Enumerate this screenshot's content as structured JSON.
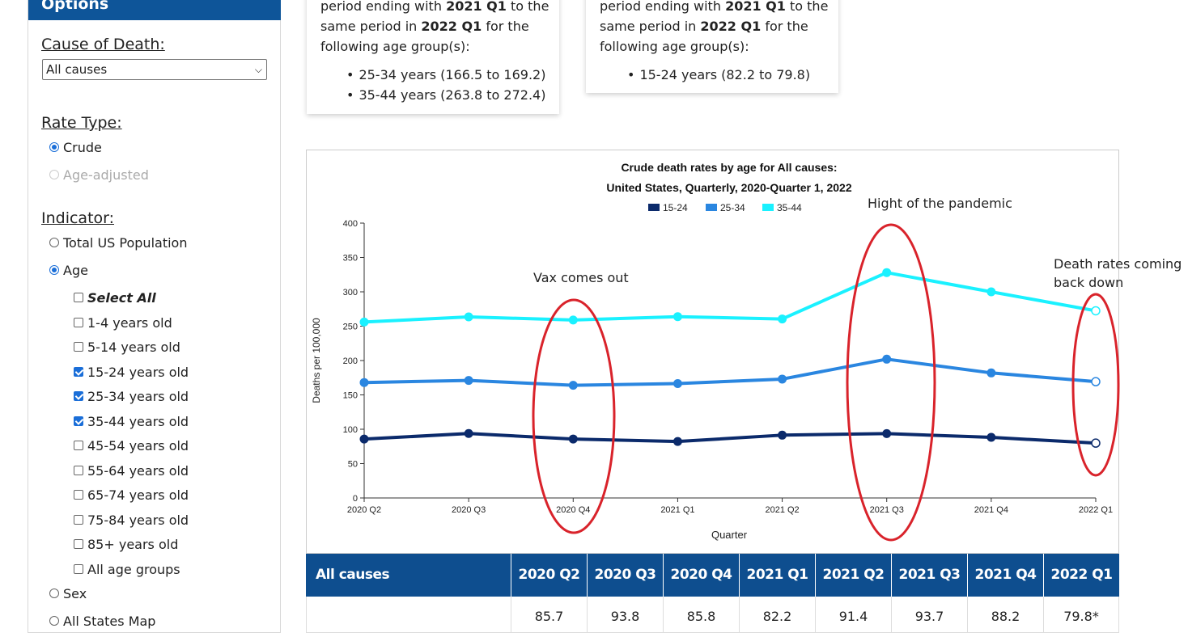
{
  "sidebar": {
    "header": "Options",
    "cause_title": "Cause of Death:",
    "cause_value": "All causes",
    "rate_title": "Rate Type:",
    "rate_options": [
      "Crude",
      "Age-adjusted"
    ],
    "indicator_title": "Indicator:",
    "indicator_options": [
      "Total US Population",
      "Age"
    ],
    "age_options": [
      "Select All",
      "1-4 years old",
      "5-14 years old",
      "15-24 years old",
      "25-34 years old",
      "35-44 years old",
      "45-54 years old",
      "55-64 years old",
      "65-74 years old",
      "75-84 years old",
      "85+ years old",
      "All age groups"
    ],
    "more_options": [
      "Sex",
      "All States Map"
    ]
  },
  "cards": [
    {
      "line1": "period ending with",
      "line1_bold": "2021 Q1",
      "line1_end": "to the",
      "line2": "same period in",
      "line2_bold": "2022 Q1",
      "line2_end": "for the",
      "line3": "following age group(s):",
      "items": [
        "25-34 years (166.5 to 169.2)",
        "35-44 years (263.8 to 272.4)"
      ]
    },
    {
      "line1": "period ending with",
      "line1_bold": "2021 Q1",
      "line1_end": "to the",
      "line2": "same period in",
      "line2_bold": "2022 Q1",
      "line2_end": "for the",
      "line3": "following age group(s):",
      "items": [
        "15-24 years (82.2 to 79.8)"
      ]
    }
  ],
  "annotations": {
    "vax": "Vax comes out",
    "peak": "Hight of the pandemic",
    "down1": "Death rates coming",
    "down2": "back down"
  },
  "colors": {
    "s1": "#0b2a6b",
    "s2": "#2a86e0",
    "s3": "#1af1ff",
    "ellipse": "#d9232b",
    "header": "#0e4e8f"
  },
  "chart_data": {
    "type": "line",
    "title": "Crude death rates by age for All causes:",
    "subtitle": "United States, Quarterly, 2020-Quarter 1, 2022",
    "xlabel": "Quarter",
    "ylabel": "Deaths per 100,000",
    "ylim": [
      0,
      400
    ],
    "yticks": [
      0,
      50,
      100,
      150,
      200,
      250,
      300,
      350,
      400
    ],
    "categories": [
      "2020 Q2",
      "2020 Q3",
      "2020 Q4",
      "2021 Q1",
      "2021 Q2",
      "2021 Q3",
      "2021 Q4",
      "2022 Q1"
    ],
    "series": [
      {
        "name": "15-24",
        "values": [
          85.7,
          93.8,
          85.8,
          82.2,
          91.4,
          93.7,
          88.2,
          79.8
        ]
      },
      {
        "name": "25-34",
        "values": [
          168,
          171,
          164,
          166.5,
          173,
          202,
          182,
          169.2
        ]
      },
      {
        "name": "35-44",
        "values": [
          256,
          263.5,
          259,
          263.8,
          260.5,
          328,
          300,
          272.4
        ]
      }
    ]
  },
  "table": {
    "header_first": "All causes",
    "columns": [
      "2020 Q2",
      "2020 Q3",
      "2020 Q4",
      "2021 Q1",
      "2021 Q2",
      "2021 Q3",
      "2021 Q4",
      "2022 Q1"
    ],
    "row1": [
      "85.7",
      "93.8",
      "85.8",
      "82.2",
      "91.4",
      "93.7",
      "88.2",
      "79.8*"
    ]
  }
}
